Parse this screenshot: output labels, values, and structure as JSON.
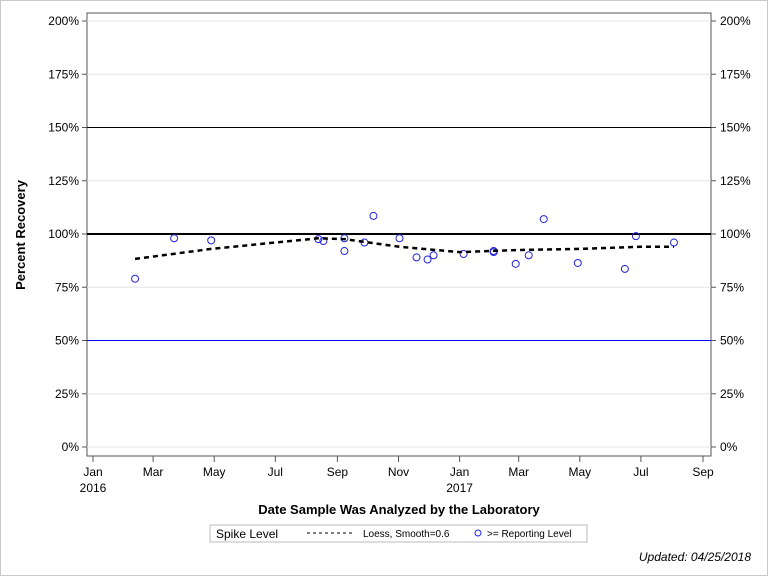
{
  "chart_data": {
    "type": "scatter",
    "xlabel": "Date Sample Was Analyzed by the Laboratory",
    "ylabel": "Percent Recovery",
    "ylim": [
      0,
      200
    ],
    "yticks": [
      0,
      25,
      50,
      75,
      100,
      125,
      150,
      175,
      200
    ],
    "ytick_labels": [
      "0%",
      "25%",
      "50%",
      "75%",
      "100%",
      "125%",
      "150%",
      "175%",
      "200%"
    ],
    "xticks": [
      {
        "date": "2016-01-01",
        "label": "Jan",
        "sub": "2016"
      },
      {
        "date": "2016-03-01",
        "label": "Mar",
        "sub": ""
      },
      {
        "date": "2016-05-01",
        "label": "May",
        "sub": ""
      },
      {
        "date": "2016-07-01",
        "label": "Jul",
        "sub": ""
      },
      {
        "date": "2016-09-01",
        "label": "Sep",
        "sub": ""
      },
      {
        "date": "2016-11-01",
        "label": "Nov",
        "sub": ""
      },
      {
        "date": "2017-01-01",
        "label": "Jan",
        "sub": "2017"
      },
      {
        "date": "2017-03-01",
        "label": "Mar",
        "sub": ""
      },
      {
        "date": "2017-05-01",
        "label": "May",
        "sub": ""
      },
      {
        "date": "2017-07-01",
        "label": "Jul",
        "sub": ""
      },
      {
        "date": "2017-09-01",
        "label": "Sep",
        "sub": ""
      }
    ],
    "reference_lines": [
      {
        "y": 150,
        "color": "#000000",
        "width": 1
      },
      {
        "y": 100,
        "color": "#000000",
        "width": 2
      },
      {
        "y": 50,
        "color": "#0000ff",
        "width": 1
      }
    ],
    "series": [
      {
        "name": ">= Reporting Level",
        "type": "scatter",
        "color": "#2222dd",
        "points": [
          [
            "2016-02-12",
            79
          ],
          [
            "2016-03-22",
            98
          ],
          [
            "2016-04-28",
            97
          ],
          [
            "2016-08-13",
            97.6
          ],
          [
            "2016-08-18",
            96.7
          ],
          [
            "2016-09-08",
            98
          ],
          [
            "2016-09-08",
            92
          ],
          [
            "2016-09-28",
            96
          ],
          [
            "2016-10-07",
            108.5
          ],
          [
            "2016-11-02",
            98
          ],
          [
            "2016-11-19",
            89
          ],
          [
            "2016-11-30",
            88
          ],
          [
            "2016-12-06",
            90
          ],
          [
            "2017-01-05",
            90.6
          ],
          [
            "2017-02-04",
            92
          ],
          [
            "2017-02-04",
            91.5
          ],
          [
            "2017-02-26",
            86
          ],
          [
            "2017-03-11",
            90
          ],
          [
            "2017-03-26",
            107
          ],
          [
            "2017-04-29",
            86.4
          ],
          [
            "2017-06-15",
            83.6
          ],
          [
            "2017-06-26",
            99
          ],
          [
            "2017-08-03",
            96
          ]
        ]
      },
      {
        "name": "Loess, Smooth=0.6",
        "type": "line",
        "color": "#000000",
        "points": [
          [
            "2016-02-12",
            88.3
          ],
          [
            "2016-04-28",
            93
          ],
          [
            "2016-08-13",
            98
          ],
          [
            "2016-09-08",
            97.6
          ],
          [
            "2016-11-02",
            94
          ],
          [
            "2017-01-01",
            91.5
          ],
          [
            "2017-03-01",
            92.5
          ],
          [
            "2017-05-01",
            93
          ],
          [
            "2017-07-01",
            94
          ],
          [
            "2017-08-03",
            94
          ]
        ]
      }
    ]
  },
  "legend": {
    "title": "Spike Level",
    "loess": "Loess, Smooth=0.6",
    "points": ">= Reporting Level"
  },
  "footer": {
    "updated": "Updated: 04/25/2018"
  }
}
